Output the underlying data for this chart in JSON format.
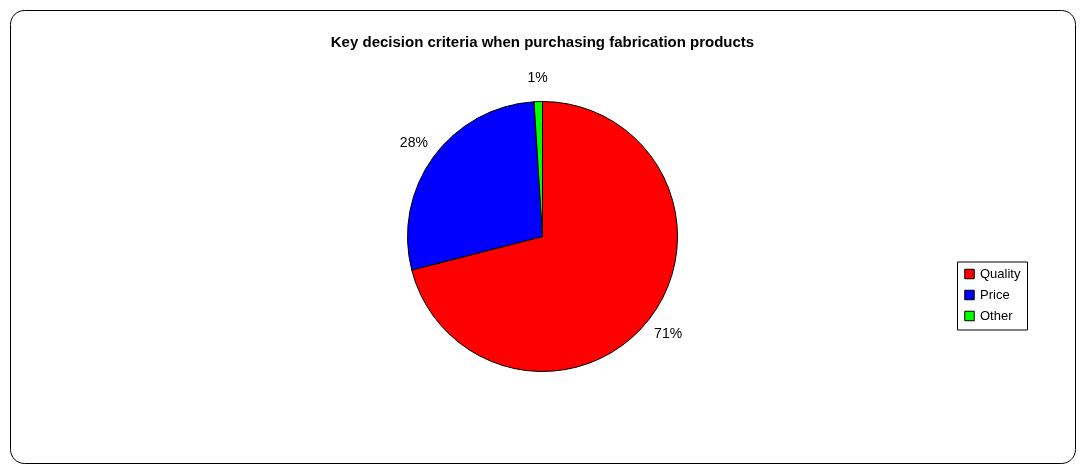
{
  "chart_data": {
    "type": "pie",
    "title": "Key decision criteria when purchasing fabrication products",
    "categories": [
      "Quality",
      "Price",
      "Other"
    ],
    "values": [
      71,
      28,
      1
    ],
    "colors": [
      "#ff0000",
      "#0000ff",
      "#00ff00"
    ],
    "value_labels": [
      "71%",
      "28%",
      "1%"
    ],
    "legend": "right"
  }
}
